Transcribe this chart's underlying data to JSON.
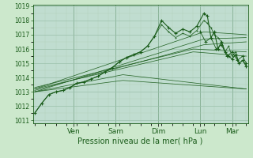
{
  "xlabel": "Pression niveau de la mer( hPa )",
  "ylim": [
    1011,
    1019
  ],
  "yticks": [
    1011,
    1012,
    1013,
    1014,
    1015,
    1016,
    1017,
    1018,
    1019
  ],
  "bg_color": "#cce8cc",
  "plot_bg_color": "#c0ddd0",
  "grid_major_color": "#9abfaa",
  "grid_minor_color": "#b0cfb8",
  "line_color": "#1a5c1a",
  "day_labels": [
    "Ven",
    "Sam",
    "Dim",
    "Lun",
    "Mar"
  ],
  "day_positions": [
    22,
    46,
    70,
    94,
    112
  ],
  "total_hours": 120,
  "xlabel_fontsize": 7.0,
  "ytick_fontsize": 5.5,
  "xtick_fontsize": 6.5
}
